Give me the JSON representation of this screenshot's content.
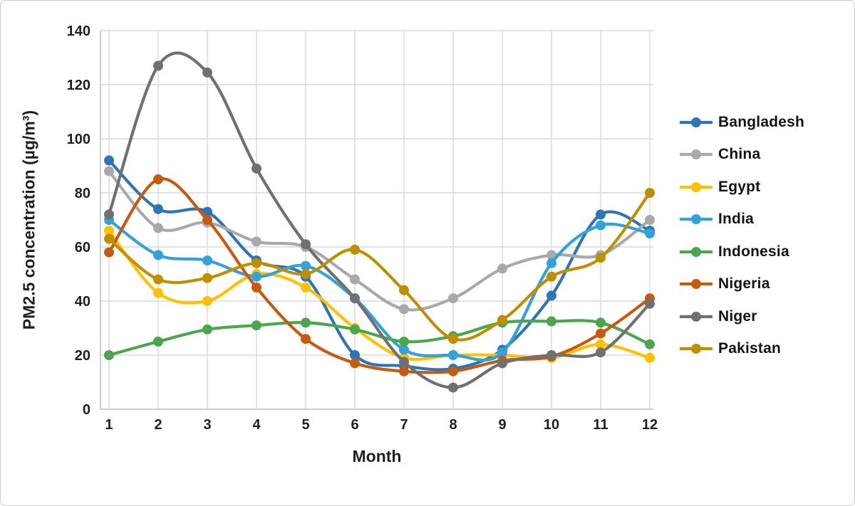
{
  "figure": {
    "border_color": "#c8c9cb",
    "background": "#ffffff"
  },
  "chart_data": {
    "type": "line",
    "smooth": true,
    "markers": true,
    "title": "",
    "xlabel": "Month",
    "ylabel": "PM2.5 concentration (µg/m³)",
    "x": [
      1,
      2,
      3,
      4,
      5,
      6,
      7,
      8,
      9,
      10,
      11,
      12
    ],
    "ylim": [
      0,
      140
    ],
    "ytick_step": 20,
    "grid": true,
    "gridline_color": "#d9d9d9",
    "axis_line_color": "#bfbfbf",
    "tick_label_color": "#1f1f1f",
    "legend_position": "right",
    "series": [
      {
        "name": "Bangladesh",
        "color": "#2e75b6",
        "values": [
          92,
          74,
          73,
          55,
          49,
          20,
          16,
          15,
          22,
          42,
          72,
          66
        ]
      },
      {
        "name": "China",
        "color": "#a9a9a9",
        "values": [
          88,
          67,
          69,
          62,
          60,
          48,
          37,
          41,
          52,
          57,
          57,
          70
        ]
      },
      {
        "name": "Egypt",
        "color": "#ffc000",
        "values": [
          66,
          43,
          40,
          50,
          45,
          30,
          19,
          20,
          20,
          19,
          24,
          19
        ]
      },
      {
        "name": "India",
        "color": "#31a2dc",
        "values": [
          70,
          57,
          55,
          49,
          53,
          41,
          22,
          20,
          21,
          54,
          68,
          65
        ]
      },
      {
        "name": "Indonesia",
        "color": "#4ba64e",
        "values": [
          20,
          25,
          29.5,
          31,
          32,
          29.5,
          25,
          27,
          32,
          32.5,
          32,
          24
        ]
      },
      {
        "name": "Nigeria",
        "color": "#c55a11",
        "values": [
          58,
          85,
          70,
          45,
          26,
          17,
          14,
          14,
          18,
          19.5,
          28,
          41
        ]
      },
      {
        "name": "Niger",
        "color": "#707070",
        "values": [
          72,
          127,
          124.5,
          89,
          61,
          41,
          17.5,
          8,
          17,
          20,
          21,
          39
        ]
      },
      {
        "name": "Pakistan",
        "color": "#bf8f00",
        "values": [
          63,
          48,
          48.5,
          54,
          50,
          59,
          44,
          26,
          33,
          49,
          56,
          80
        ]
      }
    ]
  }
}
